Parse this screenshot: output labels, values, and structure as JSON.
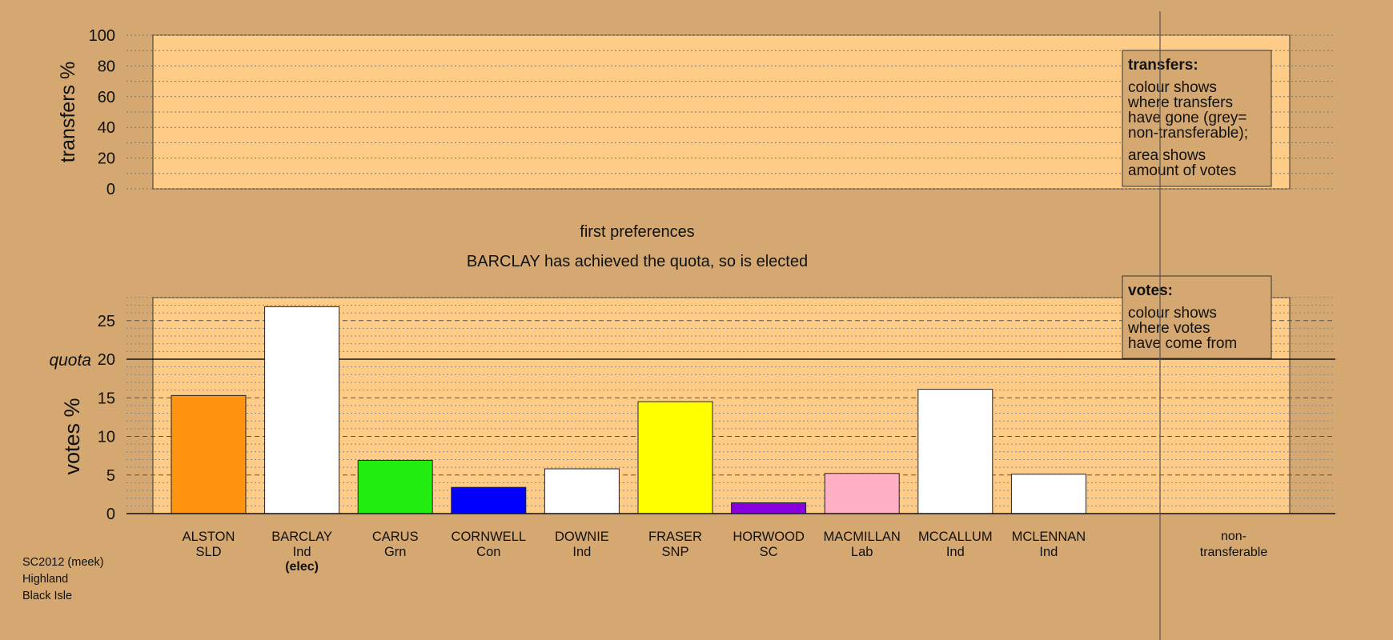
{
  "page": {
    "background": "#d4a870",
    "plot_background": "#ffcc88",
    "footer": [
      "SC2012 (meek)",
      "Highland",
      "Black Isle"
    ]
  },
  "stage": {
    "title": "first preferences",
    "message": "BARCLAY has achieved the quota, so is elected"
  },
  "transfers_legend": {
    "title": "transfers:",
    "lines": [
      "colour shows",
      "where transfers",
      "have gone (grey=",
      "non-transferable);"
    ],
    "lines2": [
      "area shows",
      "amount of votes"
    ]
  },
  "votes_legend": {
    "title": "votes:",
    "lines": [
      "colour shows",
      "where votes",
      "have come from"
    ]
  },
  "chart_data": [
    {
      "type": "bar",
      "panel": "transfers",
      "ylabel": "transfers %",
      "ylim": [
        0,
        100
      ],
      "yticks": [
        0,
        20,
        40,
        60,
        80,
        100
      ],
      "grid": true,
      "values": []
    },
    {
      "type": "bar",
      "panel": "votes",
      "ylabel": "votes %",
      "ylim": [
        0,
        28
      ],
      "yticks": [
        0,
        5,
        10,
        15,
        20,
        25
      ],
      "quota": 20,
      "quota_label": "quota",
      "grid": true,
      "categories": [
        "ALSTON",
        "BARCLAY",
        "CARUS",
        "CORNWELL",
        "DOWNIE",
        "FRASER",
        "HORWOOD",
        "MACMILLAN",
        "MCCALLUM",
        "MCLENNAN"
      ],
      "parties": [
        "SLD",
        "Ind",
        "Grn",
        "Con",
        "Ind",
        "SNP",
        "SC",
        "Lab",
        "Ind",
        "Ind"
      ],
      "status": [
        "",
        "(elec)",
        "",
        "",
        "",
        "",
        "",
        "",
        "",
        ""
      ],
      "values": [
        15.3,
        26.8,
        6.9,
        3.4,
        5.8,
        14.5,
        1.4,
        5.2,
        16.1,
        5.1
      ],
      "colors": [
        "#ff9410",
        "#ffffff",
        "#22ee11",
        "#0000ff",
        "#ffffff",
        "#ffff00",
        "#8800dd",
        "#ffb0c4",
        "#ffffff",
        "#ffffff"
      ],
      "nontransferable_label": [
        "non-",
        "transferable"
      ]
    }
  ]
}
